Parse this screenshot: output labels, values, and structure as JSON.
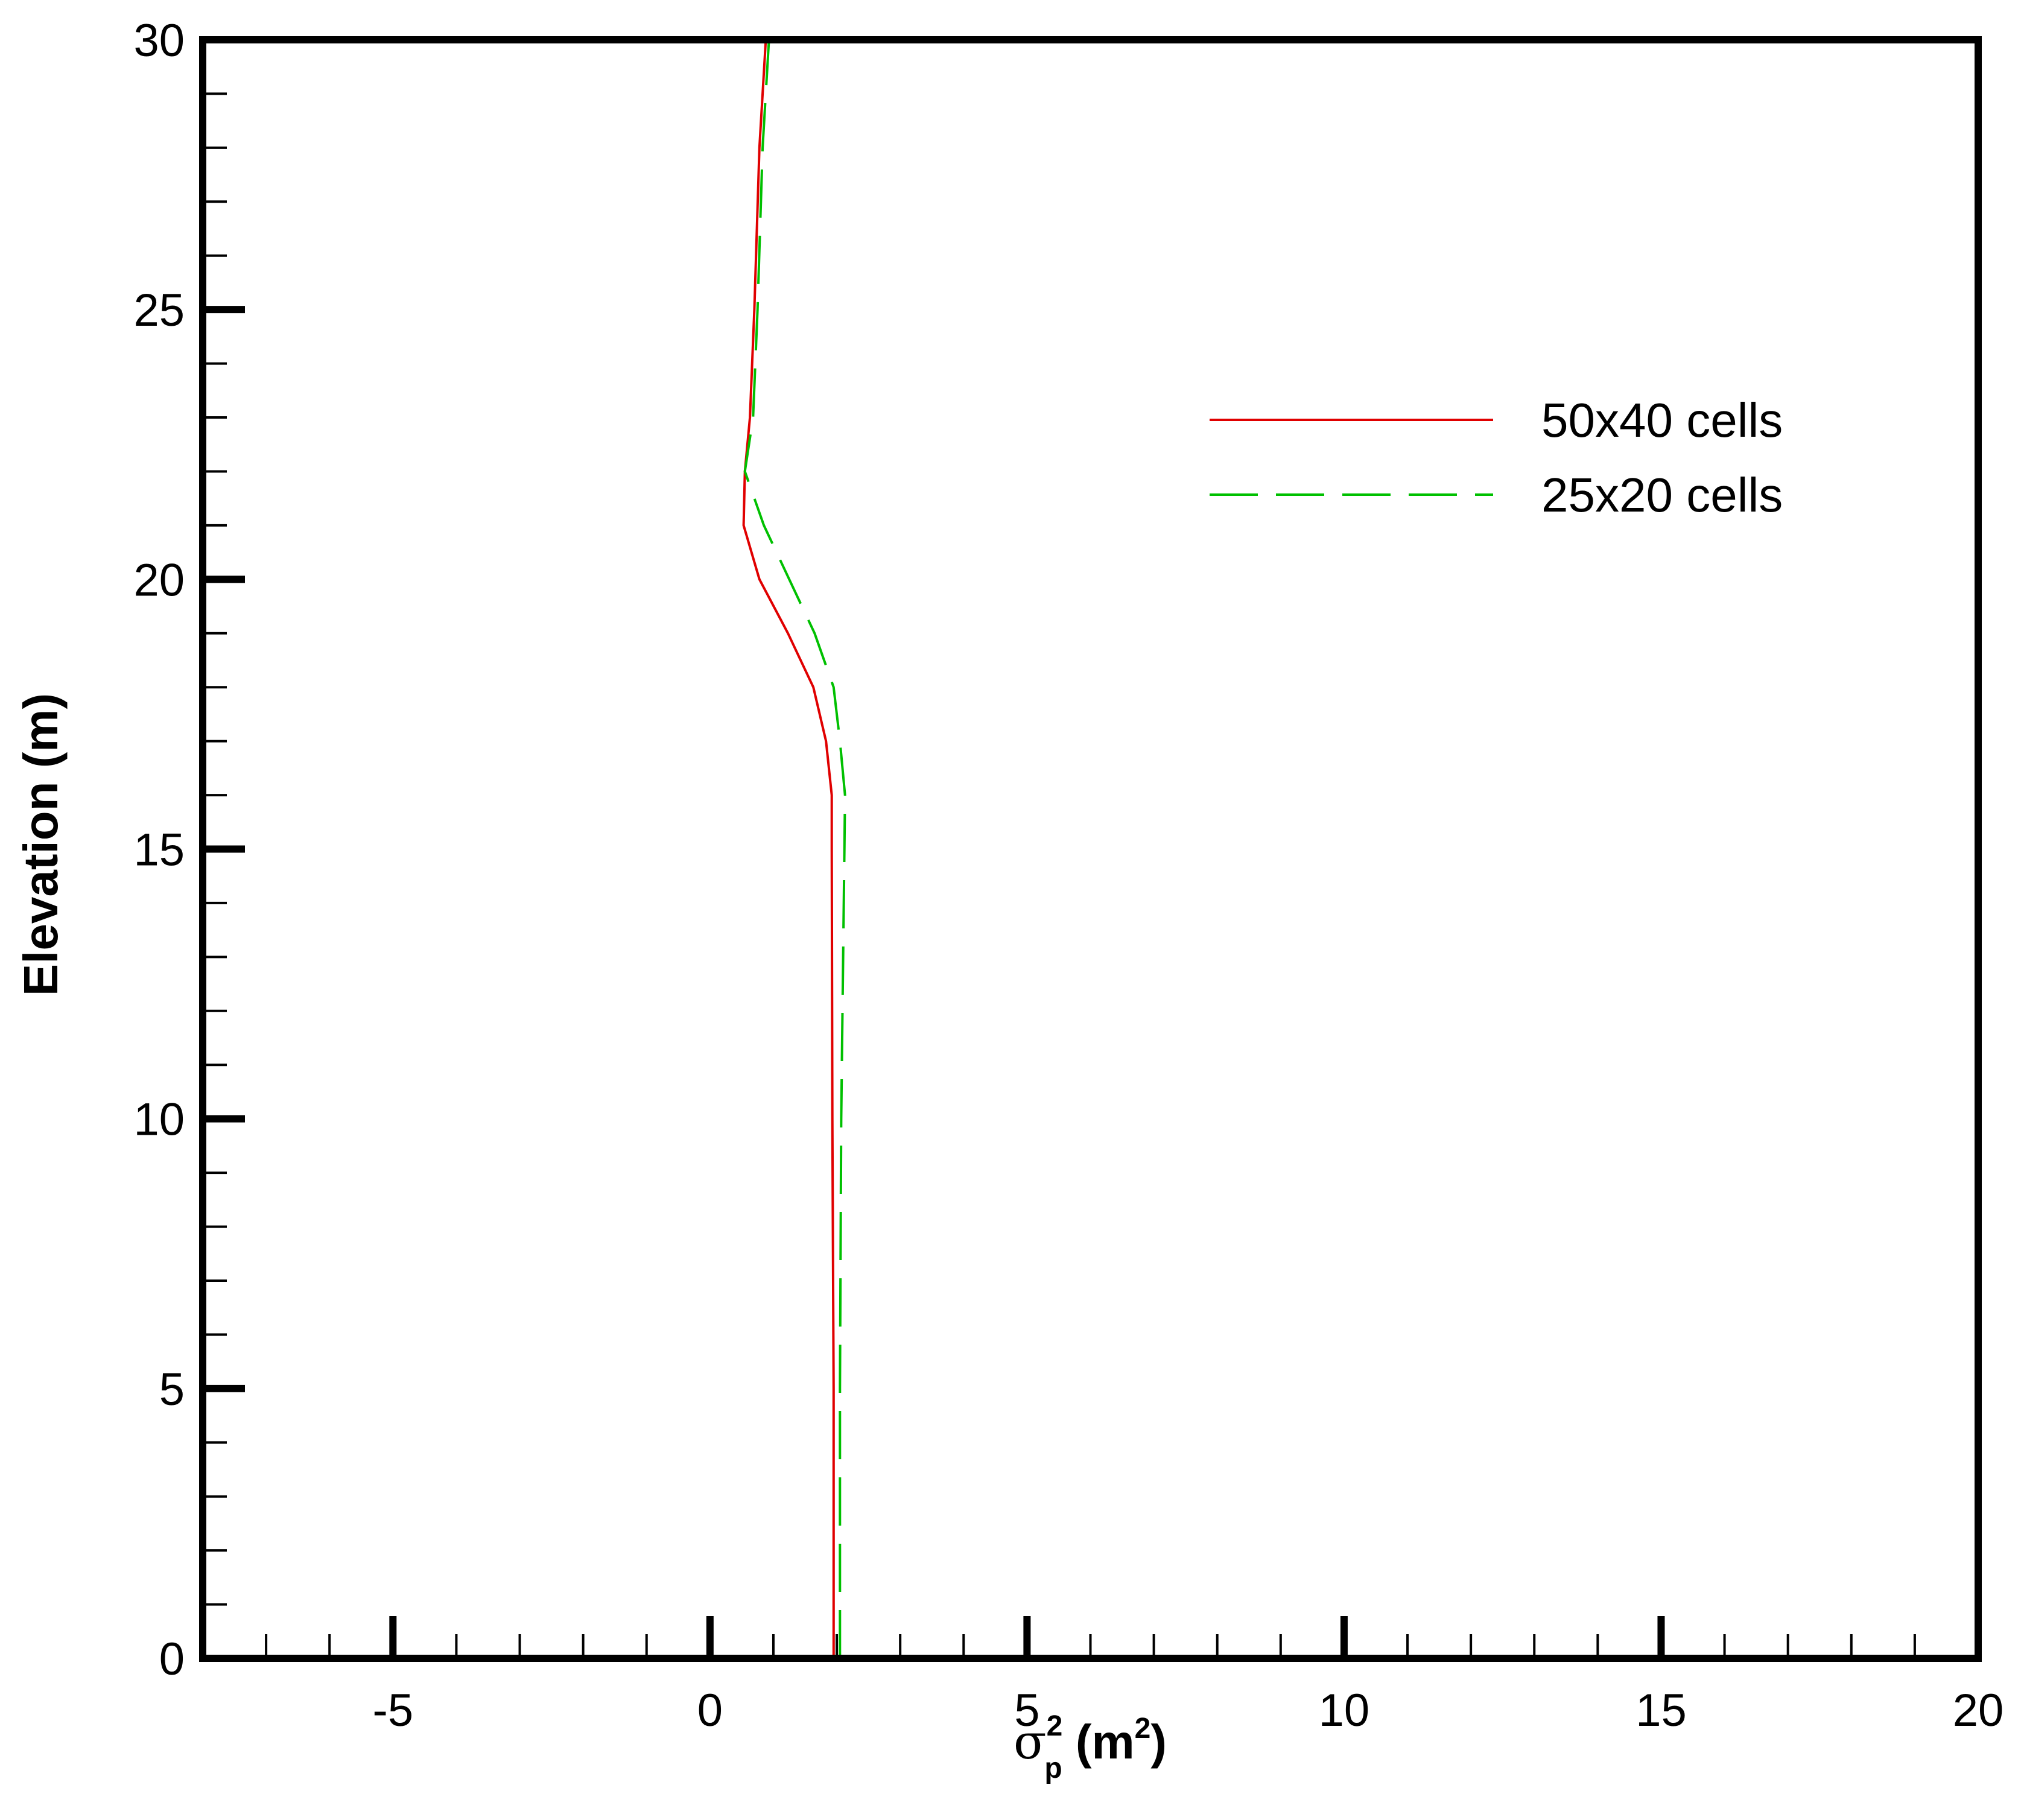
{
  "chart_data": {
    "type": "line",
    "xlabel": {
      "main": "σ",
      "sub": "p",
      "sup": "2",
      "unit_open": " (m",
      "unit_sup": "2",
      "unit_close": ")"
    },
    "ylabel": "Elevation (m)",
    "xlim": [
      -8,
      20
    ],
    "ylim": [
      0,
      30
    ],
    "x_ticks": [
      -5,
      0,
      5,
      10,
      15,
      20
    ],
    "y_ticks": [
      0,
      5,
      10,
      15,
      20,
      25,
      30
    ],
    "x_tick_labels": [
      "-5",
      "0",
      "5",
      "10",
      "15",
      "20"
    ],
    "y_tick_labels": [
      "0",
      "5",
      "10",
      "15",
      "20",
      "25",
      "30"
    ],
    "x_minor_step": 1,
    "y_minor_step": 1,
    "grid": false,
    "legend_position": "upper-right",
    "series": [
      {
        "name": "50x40 cells",
        "color": "#e00000",
        "dash": "solid",
        "points": [
          [
            1.95,
            0
          ],
          [
            1.95,
            5
          ],
          [
            1.93,
            10
          ],
          [
            1.92,
            15
          ],
          [
            1.92,
            16
          ],
          [
            1.83,
            17
          ],
          [
            1.63,
            18
          ],
          [
            1.23,
            19
          ],
          [
            0.78,
            20
          ],
          [
            0.53,
            21
          ],
          [
            0.55,
            22
          ],
          [
            0.63,
            23
          ],
          [
            0.7,
            25
          ],
          [
            0.78,
            28
          ],
          [
            0.88,
            30
          ]
        ]
      },
      {
        "name": "25x20 cells",
        "color": "#00c000",
        "dash": "dashed",
        "points": [
          [
            2.05,
            0
          ],
          [
            2.05,
            5
          ],
          [
            2.07,
            10
          ],
          [
            2.12,
            15
          ],
          [
            2.13,
            16
          ],
          [
            2.05,
            17
          ],
          [
            1.95,
            18
          ],
          [
            1.65,
            19
          ],
          [
            1.25,
            20
          ],
          [
            0.85,
            21
          ],
          [
            0.55,
            22
          ],
          [
            0.68,
            23
          ],
          [
            0.75,
            25
          ],
          [
            0.83,
            28
          ],
          [
            0.93,
            30
          ]
        ]
      }
    ]
  }
}
